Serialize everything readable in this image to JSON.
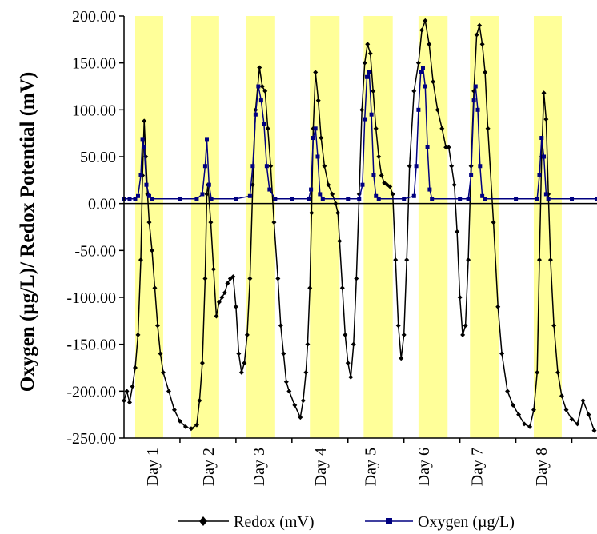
{
  "chart_data": {
    "type": "line",
    "title": "",
    "ylabel": "Oxygen (µg/L)/ Redox Potential (mV)",
    "xlabel": "",
    "ylim": [
      -250,
      200
    ],
    "xlim": [
      0,
      8.45
    ],
    "yticks": [
      "200.00",
      "150.00",
      "100.00",
      "50.00",
      "0.00",
      "-50.00",
      "-100.00",
      "-150.00",
      "-200.00",
      "-250.00"
    ],
    "ytick_values": [
      200,
      150,
      100,
      50,
      0,
      -50,
      -100,
      -150,
      -200,
      -250
    ],
    "categories": [
      "Day 1",
      "Day 2",
      "Day 3",
      "Day 4",
      "Day 5",
      "Day 6",
      "Day 7",
      "Day 8"
    ],
    "category_positions": [
      0.5,
      1.5,
      2.4,
      3.5,
      4.4,
      5.35,
      6.3,
      7.45
    ],
    "light_periods": [
      [
        0.2,
        0.7
      ],
      [
        1.2,
        1.7
      ],
      [
        2.18,
        2.7
      ],
      [
        3.32,
        3.85
      ],
      [
        4.28,
        4.8
      ],
      [
        5.26,
        5.78
      ],
      [
        6.18,
        6.7
      ],
      [
        7.32,
        7.82
      ]
    ],
    "light_color": "#ffff99",
    "grid": false,
    "legend_position": "bottom",
    "series": [
      {
        "name": "Redox (mV)",
        "color": "#000000",
        "marker": "diamond",
        "points": [
          [
            0.0,
            -210
          ],
          [
            0.05,
            -200
          ],
          [
            0.1,
            -212
          ],
          [
            0.15,
            -195
          ],
          [
            0.2,
            -175
          ],
          [
            0.25,
            -140
          ],
          [
            0.3,
            -60
          ],
          [
            0.33,
            30
          ],
          [
            0.36,
            88
          ],
          [
            0.39,
            50
          ],
          [
            0.42,
            10
          ],
          [
            0.45,
            -20
          ],
          [
            0.5,
            -50
          ],
          [
            0.55,
            -90
          ],
          [
            0.6,
            -130
          ],
          [
            0.65,
            -160
          ],
          [
            0.7,
            -180
          ],
          [
            0.8,
            -200
          ],
          [
            0.9,
            -220
          ],
          [
            1.0,
            -232
          ],
          [
            1.1,
            -238
          ],
          [
            1.2,
            -240
          ],
          [
            1.3,
            -236
          ],
          [
            1.35,
            -210
          ],
          [
            1.4,
            -170
          ],
          [
            1.45,
            -80
          ],
          [
            1.48,
            10
          ],
          [
            1.5,
            20
          ],
          [
            1.55,
            -20
          ],
          [
            1.6,
            -70
          ],
          [
            1.65,
            -120
          ],
          [
            1.7,
            -105
          ],
          [
            1.75,
            -100
          ],
          [
            1.8,
            -95
          ],
          [
            1.85,
            -85
          ],
          [
            1.9,
            -80
          ],
          [
            1.95,
            -78
          ],
          [
            2.0,
            -110
          ],
          [
            2.05,
            -160
          ],
          [
            2.1,
            -180
          ],
          [
            2.15,
            -170
          ],
          [
            2.2,
            -140
          ],
          [
            2.25,
            -80
          ],
          [
            2.3,
            20
          ],
          [
            2.35,
            100
          ],
          [
            2.42,
            145
          ],
          [
            2.47,
            125
          ],
          [
            2.52,
            120
          ],
          [
            2.57,
            80
          ],
          [
            2.62,
            40
          ],
          [
            2.68,
            -20
          ],
          [
            2.75,
            -80
          ],
          [
            2.8,
            -130
          ],
          [
            2.85,
            -160
          ],
          [
            2.9,
            -190
          ],
          [
            2.95,
            -200
          ],
          [
            3.05,
            -215
          ],
          [
            3.15,
            -228
          ],
          [
            3.2,
            -210
          ],
          [
            3.25,
            -180
          ],
          [
            3.28,
            -150
          ],
          [
            3.32,
            -90
          ],
          [
            3.35,
            -10
          ],
          [
            3.38,
            80
          ],
          [
            3.42,
            140
          ],
          [
            3.47,
            110
          ],
          [
            3.52,
            70
          ],
          [
            3.58,
            40
          ],
          [
            3.65,
            20
          ],
          [
            3.72,
            10
          ],
          [
            3.78,
            0
          ],
          [
            3.82,
            -10
          ],
          [
            3.85,
            -40
          ],
          [
            3.9,
            -90
          ],
          [
            3.95,
            -140
          ],
          [
            4.0,
            -170
          ],
          [
            4.05,
            -185
          ],
          [
            4.1,
            -150
          ],
          [
            4.15,
            -80
          ],
          [
            4.2,
            10
          ],
          [
            4.25,
            100
          ],
          [
            4.3,
            150
          ],
          [
            4.35,
            170
          ],
          [
            4.4,
            160
          ],
          [
            4.45,
            120
          ],
          [
            4.5,
            80
          ],
          [
            4.55,
            50
          ],
          [
            4.6,
            30
          ],
          [
            4.65,
            22
          ],
          [
            4.7,
            20
          ],
          [
            4.75,
            18
          ],
          [
            4.8,
            10
          ],
          [
            4.85,
            -60
          ],
          [
            4.9,
            -130
          ],
          [
            4.95,
            -165
          ],
          [
            5.0,
            -140
          ],
          [
            5.05,
            -60
          ],
          [
            5.1,
            40
          ],
          [
            5.18,
            120
          ],
          [
            5.26,
            150
          ],
          [
            5.32,
            185
          ],
          [
            5.38,
            195
          ],
          [
            5.45,
            170
          ],
          [
            5.52,
            130
          ],
          [
            5.6,
            100
          ],
          [
            5.68,
            80
          ],
          [
            5.75,
            60
          ],
          [
            5.8,
            60
          ],
          [
            5.85,
            40
          ],
          [
            5.9,
            20
          ],
          [
            5.95,
            -30
          ],
          [
            6.0,
            -100
          ],
          [
            6.05,
            -140
          ],
          [
            6.1,
            -130
          ],
          [
            6.15,
            -60
          ],
          [
            6.2,
            40
          ],
          [
            6.25,
            120
          ],
          [
            6.3,
            180
          ],
          [
            6.35,
            190
          ],
          [
            6.4,
            170
          ],
          [
            6.45,
            140
          ],
          [
            6.5,
            80
          ],
          [
            6.6,
            -20
          ],
          [
            6.68,
            -110
          ],
          [
            6.75,
            -160
          ],
          [
            6.85,
            -200
          ],
          [
            6.95,
            -215
          ],
          [
            7.05,
            -225
          ],
          [
            7.15,
            -235
          ],
          [
            7.25,
            -238
          ],
          [
            7.32,
            -220
          ],
          [
            7.38,
            -180
          ],
          [
            7.42,
            -60
          ],
          [
            7.46,
            50
          ],
          [
            7.5,
            118
          ],
          [
            7.54,
            90
          ],
          [
            7.58,
            10
          ],
          [
            7.62,
            -60
          ],
          [
            7.68,
            -130
          ],
          [
            7.75,
            -180
          ],
          [
            7.82,
            -205
          ],
          [
            7.9,
            -220
          ],
          [
            8.0,
            -230
          ],
          [
            8.1,
            -235
          ],
          [
            8.2,
            -210
          ],
          [
            8.3,
            -225
          ],
          [
            8.4,
            -242
          ]
        ]
      },
      {
        "name": "Oxygen (µg/L)",
        "color": "#000080",
        "marker": "square",
        "points": [
          [
            0.0,
            5
          ],
          [
            0.1,
            5
          ],
          [
            0.2,
            5
          ],
          [
            0.25,
            8
          ],
          [
            0.3,
            30
          ],
          [
            0.33,
            68
          ],
          [
            0.36,
            60
          ],
          [
            0.4,
            20
          ],
          [
            0.45,
            8
          ],
          [
            0.5,
            5
          ],
          [
            1.0,
            5
          ],
          [
            1.3,
            5
          ],
          [
            1.4,
            10
          ],
          [
            1.45,
            40
          ],
          [
            1.48,
            68
          ],
          [
            1.52,
            20
          ],
          [
            1.56,
            5
          ],
          [
            2.0,
            5
          ],
          [
            2.25,
            8
          ],
          [
            2.3,
            40
          ],
          [
            2.35,
            95
          ],
          [
            2.4,
            125
          ],
          [
            2.45,
            110
          ],
          [
            2.5,
            85
          ],
          [
            2.55,
            40
          ],
          [
            2.6,
            15
          ],
          [
            2.7,
            5
          ],
          [
            3.0,
            5
          ],
          [
            3.3,
            5
          ],
          [
            3.34,
            15
          ],
          [
            3.38,
            70
          ],
          [
            3.42,
            80
          ],
          [
            3.46,
            50
          ],
          [
            3.5,
            10
          ],
          [
            3.55,
            5
          ],
          [
            4.0,
            5
          ],
          [
            4.2,
            5
          ],
          [
            4.26,
            20
          ],
          [
            4.3,
            90
          ],
          [
            4.34,
            135
          ],
          [
            4.38,
            140
          ],
          [
            4.42,
            95
          ],
          [
            4.46,
            30
          ],
          [
            4.5,
            8
          ],
          [
            4.55,
            5
          ],
          [
            5.0,
            5
          ],
          [
            5.18,
            8
          ],
          [
            5.22,
            40
          ],
          [
            5.26,
            100
          ],
          [
            5.3,
            140
          ],
          [
            5.34,
            145
          ],
          [
            5.38,
            125
          ],
          [
            5.42,
            60
          ],
          [
            5.46,
            15
          ],
          [
            5.5,
            5
          ],
          [
            6.0,
            5
          ],
          [
            6.15,
            5
          ],
          [
            6.2,
            30
          ],
          [
            6.25,
            110
          ],
          [
            6.28,
            125
          ],
          [
            6.32,
            100
          ],
          [
            6.36,
            40
          ],
          [
            6.4,
            8
          ],
          [
            6.45,
            5
          ],
          [
            7.0,
            5
          ],
          [
            7.38,
            5
          ],
          [
            7.42,
            30
          ],
          [
            7.46,
            70
          ],
          [
            7.5,
            50
          ],
          [
            7.54,
            10
          ],
          [
            7.58,
            5
          ],
          [
            8.0,
            5
          ],
          [
            8.45,
            5
          ]
        ]
      }
    ]
  }
}
